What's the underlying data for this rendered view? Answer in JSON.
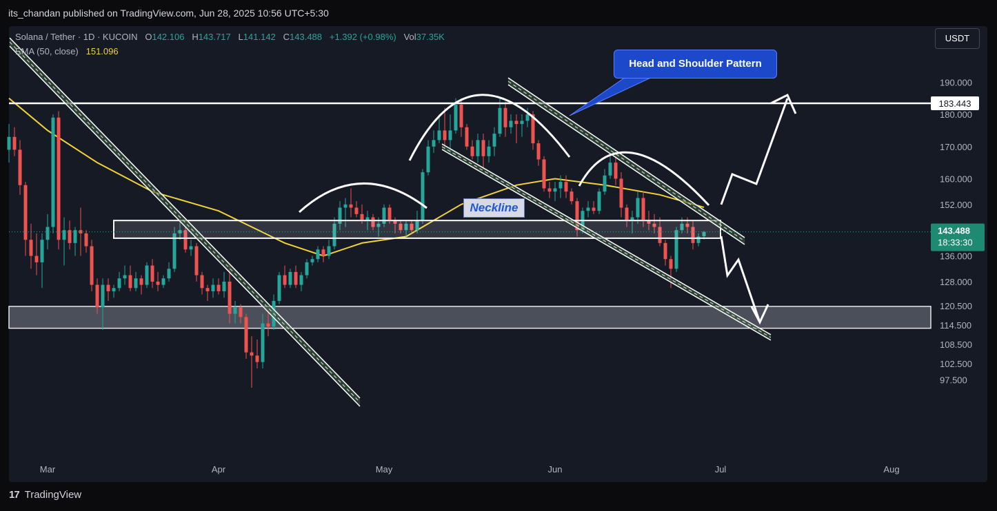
{
  "header": {
    "publisher": "its_chandan published on TradingView.com, Jun 28, 2025 10:56 UTC+5:30"
  },
  "legend": {
    "symbol": "Solana / Tether · 1D · KUCOIN",
    "open_label": "O",
    "open": "142.106",
    "high_label": "H",
    "high": "143.717",
    "low_label": "L",
    "low": "141.142",
    "close_label": "C",
    "close": "143.488",
    "change": "+1.392 (+0.98%)",
    "vol_label": "Vol",
    "vol": "37.35K",
    "ema_label": "EMA (50, close)",
    "ema_value": "151.096"
  },
  "currency_button": "USDT",
  "annotations": {
    "callout": "Head and Shoulder Pattern",
    "neckline": "Neckline"
  },
  "price_tags": {
    "level": "183.443",
    "current": "143.488",
    "countdown": "18:33:30"
  },
  "footer": {
    "brand": "TradingView"
  },
  "colors": {
    "up": "#26a69a",
    "down": "#ef5350",
    "ema": "#f2d234",
    "background": "#161a25",
    "callout": "#1c49c9",
    "current_tag": "#1e8a72"
  },
  "chart_data": {
    "type": "candlestick",
    "symbol": "Solana / Tether · 1D · KUCOIN",
    "x_ticks": [
      "Mar",
      "Apr",
      "May",
      "Jun",
      "Jul",
      "Aug"
    ],
    "x_tick_dates": [
      "2025-03-01",
      "2025-04-01",
      "2025-05-01",
      "2025-06-01",
      "2025-07-01",
      "2025-08-01"
    ],
    "y_ticks": [
      190.0,
      180.0,
      170.0,
      160.0,
      152.0,
      136.0,
      128.0,
      120.5,
      114.5,
      108.5,
      102.5,
      97.5
    ],
    "y_tick_labels": [
      "190.000",
      "180.000",
      "170.000",
      "160.000",
      "152.000",
      "136.000",
      "128.000",
      "120.500",
      "114.500",
      "108.500",
      "102.500",
      "97.500"
    ],
    "horizontal_level": 183.443,
    "neckline_zone": [
      141.5,
      147.0
    ],
    "support_zone": [
      113.5,
      120.3
    ],
    "candles": [
      {
        "d": "2025-02-22",
        "o": 169,
        "h": 177,
        "l": 165,
        "c": 173
      },
      {
        "d": "2025-02-23",
        "o": 173,
        "h": 176,
        "l": 167,
        "c": 169
      },
      {
        "d": "2025-02-24",
        "o": 169,
        "h": 172,
        "l": 155,
        "c": 158
      },
      {
        "d": "2025-02-25",
        "o": 158,
        "h": 159,
        "l": 136,
        "c": 141
      },
      {
        "d": "2025-02-26",
        "o": 141,
        "h": 146,
        "l": 132,
        "c": 136
      },
      {
        "d": "2025-02-27",
        "o": 136,
        "h": 143,
        "l": 130,
        "c": 134
      },
      {
        "d": "2025-02-28",
        "o": 134,
        "h": 143,
        "l": 126,
        "c": 141
      },
      {
        "d": "2025-03-01",
        "o": 141,
        "h": 149,
        "l": 138,
        "c": 145
      },
      {
        "d": "2025-03-02",
        "o": 145,
        "h": 180,
        "l": 143,
        "c": 179
      },
      {
        "d": "2025-03-03",
        "o": 179,
        "h": 181,
        "l": 138,
        "c": 141
      },
      {
        "d": "2025-03-04",
        "o": 141,
        "h": 148,
        "l": 133,
        "c": 144
      },
      {
        "d": "2025-03-05",
        "o": 144,
        "h": 147,
        "l": 138,
        "c": 140
      },
      {
        "d": "2025-03-06",
        "o": 140,
        "h": 145,
        "l": 136,
        "c": 144
      },
      {
        "d": "2025-03-07",
        "o": 144,
        "h": 151,
        "l": 136,
        "c": 143
      },
      {
        "d": "2025-03-08",
        "o": 143,
        "h": 144,
        "l": 137,
        "c": 139
      },
      {
        "d": "2025-03-09",
        "o": 139,
        "h": 141,
        "l": 125,
        "c": 127
      },
      {
        "d": "2025-03-10",
        "o": 127,
        "h": 129,
        "l": 118,
        "c": 120
      },
      {
        "d": "2025-03-11",
        "o": 120,
        "h": 129,
        "l": 113,
        "c": 127
      },
      {
        "d": "2025-03-12",
        "o": 127,
        "h": 129,
        "l": 122,
        "c": 125
      },
      {
        "d": "2025-03-13",
        "o": 125,
        "h": 127,
        "l": 123,
        "c": 126
      },
      {
        "d": "2025-03-14",
        "o": 126,
        "h": 131,
        "l": 125,
        "c": 129
      },
      {
        "d": "2025-03-15",
        "o": 129,
        "h": 133,
        "l": 127,
        "c": 130
      },
      {
        "d": "2025-03-16",
        "o": 130,
        "h": 133,
        "l": 125,
        "c": 126
      },
      {
        "d": "2025-03-17",
        "o": 126,
        "h": 131,
        "l": 125,
        "c": 129
      },
      {
        "d": "2025-03-18",
        "o": 129,
        "h": 130,
        "l": 124,
        "c": 127
      },
      {
        "d": "2025-03-19",
        "o": 127,
        "h": 134,
        "l": 126,
        "c": 133
      },
      {
        "d": "2025-03-20",
        "o": 133,
        "h": 135,
        "l": 126,
        "c": 128
      },
      {
        "d": "2025-03-21",
        "o": 128,
        "h": 131,
        "l": 125,
        "c": 127
      },
      {
        "d": "2025-03-22",
        "o": 127,
        "h": 130,
        "l": 126,
        "c": 129
      },
      {
        "d": "2025-03-23",
        "o": 129,
        "h": 134,
        "l": 128,
        "c": 132
      },
      {
        "d": "2025-03-24",
        "o": 132,
        "h": 145,
        "l": 131,
        "c": 143
      },
      {
        "d": "2025-03-25",
        "o": 143,
        "h": 147,
        "l": 141,
        "c": 144
      },
      {
        "d": "2025-03-26",
        "o": 144,
        "h": 145,
        "l": 137,
        "c": 138
      },
      {
        "d": "2025-03-27",
        "o": 138,
        "h": 141,
        "l": 136,
        "c": 139
      },
      {
        "d": "2025-03-28",
        "o": 139,
        "h": 140,
        "l": 128,
        "c": 130
      },
      {
        "d": "2025-03-29",
        "o": 130,
        "h": 131,
        "l": 124,
        "c": 126
      },
      {
        "d": "2025-03-30",
        "o": 126,
        "h": 127,
        "l": 122,
        "c": 125
      },
      {
        "d": "2025-03-31",
        "o": 125,
        "h": 129,
        "l": 123,
        "c": 127
      },
      {
        "d": "2025-04-01",
        "o": 127,
        "h": 129,
        "l": 124,
        "c": 125
      },
      {
        "d": "2025-04-02",
        "o": 125,
        "h": 131,
        "l": 123,
        "c": 128
      },
      {
        "d": "2025-04-03",
        "o": 128,
        "h": 133,
        "l": 115,
        "c": 118
      },
      {
        "d": "2025-04-04",
        "o": 118,
        "h": 122,
        "l": 115,
        "c": 120
      },
      {
        "d": "2025-04-05",
        "o": 120,
        "h": 121,
        "l": 115,
        "c": 117
      },
      {
        "d": "2025-04-06",
        "o": 117,
        "h": 118,
        "l": 104,
        "c": 106
      },
      {
        "d": "2025-04-07",
        "o": 106,
        "h": 111,
        "l": 95,
        "c": 105
      },
      {
        "d": "2025-04-08",
        "o": 105,
        "h": 110,
        "l": 101,
        "c": 103
      },
      {
        "d": "2025-04-09",
        "o": 103,
        "h": 118,
        "l": 101,
        "c": 115
      },
      {
        "d": "2025-04-10",
        "o": 115,
        "h": 119,
        "l": 111,
        "c": 114
      },
      {
        "d": "2025-04-11",
        "o": 114,
        "h": 124,
        "l": 113,
        "c": 122
      },
      {
        "d": "2025-04-12",
        "o": 122,
        "h": 131,
        "l": 121,
        "c": 130
      },
      {
        "d": "2025-04-13",
        "o": 130,
        "h": 133,
        "l": 126,
        "c": 127
      },
      {
        "d": "2025-04-14",
        "o": 127,
        "h": 132,
        "l": 126,
        "c": 131
      },
      {
        "d": "2025-04-15",
        "o": 131,
        "h": 133,
        "l": 126,
        "c": 127
      },
      {
        "d": "2025-04-16",
        "o": 127,
        "h": 131,
        "l": 125,
        "c": 130
      },
      {
        "d": "2025-04-17",
        "o": 130,
        "h": 135,
        "l": 129,
        "c": 134
      },
      {
        "d": "2025-04-18",
        "o": 134,
        "h": 136,
        "l": 133,
        "c": 135
      },
      {
        "d": "2025-04-19",
        "o": 135,
        "h": 139,
        "l": 134,
        "c": 138
      },
      {
        "d": "2025-04-20",
        "o": 138,
        "h": 139,
        "l": 134,
        "c": 136
      },
      {
        "d": "2025-04-21",
        "o": 136,
        "h": 141,
        "l": 135,
        "c": 139
      },
      {
        "d": "2025-04-22",
        "o": 139,
        "h": 148,
        "l": 138,
        "c": 146
      },
      {
        "d": "2025-04-23",
        "o": 146,
        "h": 153,
        "l": 144,
        "c": 151
      },
      {
        "d": "2025-04-24",
        "o": 151,
        "h": 154,
        "l": 145,
        "c": 152
      },
      {
        "d": "2025-04-25",
        "o": 152,
        "h": 157,
        "l": 148,
        "c": 151
      },
      {
        "d": "2025-04-26",
        "o": 151,
        "h": 153,
        "l": 148,
        "c": 149
      },
      {
        "d": "2025-04-27",
        "o": 149,
        "h": 152,
        "l": 146,
        "c": 147
      },
      {
        "d": "2025-04-28",
        "o": 147,
        "h": 150,
        "l": 144,
        "c": 148
      },
      {
        "d": "2025-04-29",
        "o": 148,
        "h": 149,
        "l": 144,
        "c": 145
      },
      {
        "d": "2025-04-30",
        "o": 145,
        "h": 148,
        "l": 142,
        "c": 146
      },
      {
        "d": "2025-05-01",
        "o": 146,
        "h": 152,
        "l": 145,
        "c": 151
      },
      {
        "d": "2025-05-02",
        "o": 151,
        "h": 152,
        "l": 146,
        "c": 147
      },
      {
        "d": "2025-05-03",
        "o": 147,
        "h": 148,
        "l": 143,
        "c": 146
      },
      {
        "d": "2025-05-04",
        "o": 146,
        "h": 147,
        "l": 143,
        "c": 144
      },
      {
        "d": "2025-05-05",
        "o": 144,
        "h": 147,
        "l": 142,
        "c": 146
      },
      {
        "d": "2025-05-06",
        "o": 146,
        "h": 147,
        "l": 143,
        "c": 144
      },
      {
        "d": "2025-05-07",
        "o": 144,
        "h": 150,
        "l": 143,
        "c": 147
      },
      {
        "d": "2025-05-08",
        "o": 147,
        "h": 163,
        "l": 146,
        "c": 162
      },
      {
        "d": "2025-05-09",
        "o": 162,
        "h": 172,
        "l": 161,
        "c": 170
      },
      {
        "d": "2025-05-10",
        "o": 170,
        "h": 175,
        "l": 168,
        "c": 172
      },
      {
        "d": "2025-05-11",
        "o": 172,
        "h": 180,
        "l": 171,
        "c": 175
      },
      {
        "d": "2025-05-12",
        "o": 175,
        "h": 182,
        "l": 169,
        "c": 172
      },
      {
        "d": "2025-05-13",
        "o": 172,
        "h": 180,
        "l": 168,
        "c": 175
      },
      {
        "d": "2025-05-14",
        "o": 175,
        "h": 185,
        "l": 174,
        "c": 183
      },
      {
        "d": "2025-05-15",
        "o": 183,
        "h": 185,
        "l": 173,
        "c": 176
      },
      {
        "d": "2025-05-16",
        "o": 176,
        "h": 177,
        "l": 169,
        "c": 170
      },
      {
        "d": "2025-05-17",
        "o": 170,
        "h": 172,
        "l": 166,
        "c": 167
      },
      {
        "d": "2025-05-18",
        "o": 167,
        "h": 174,
        "l": 165,
        "c": 172
      },
      {
        "d": "2025-05-19",
        "o": 172,
        "h": 174,
        "l": 163,
        "c": 167
      },
      {
        "d": "2025-05-20",
        "o": 167,
        "h": 172,
        "l": 165,
        "c": 170
      },
      {
        "d": "2025-05-21",
        "o": 170,
        "h": 176,
        "l": 167,
        "c": 174
      },
      {
        "d": "2025-05-22",
        "o": 174,
        "h": 185,
        "l": 173,
        "c": 182
      },
      {
        "d": "2025-05-23",
        "o": 182,
        "h": 184,
        "l": 173,
        "c": 176
      },
      {
        "d": "2025-05-24",
        "o": 176,
        "h": 180,
        "l": 174,
        "c": 178
      },
      {
        "d": "2025-05-25",
        "o": 178,
        "h": 180,
        "l": 171,
        "c": 177
      },
      {
        "d": "2025-05-26",
        "o": 177,
        "h": 180,
        "l": 173,
        "c": 178
      },
      {
        "d": "2025-05-27",
        "o": 178,
        "h": 182,
        "l": 176,
        "c": 180
      },
      {
        "d": "2025-05-28",
        "o": 180,
        "h": 181,
        "l": 169,
        "c": 171
      },
      {
        "d": "2025-05-29",
        "o": 171,
        "h": 172,
        "l": 164,
        "c": 166
      },
      {
        "d": "2025-05-30",
        "o": 166,
        "h": 167,
        "l": 156,
        "c": 157
      },
      {
        "d": "2025-05-31",
        "o": 157,
        "h": 159,
        "l": 154,
        "c": 156
      },
      {
        "d": "2025-06-01",
        "o": 156,
        "h": 159,
        "l": 153,
        "c": 157
      },
      {
        "d": "2025-06-02",
        "o": 157,
        "h": 161,
        "l": 154,
        "c": 159
      },
      {
        "d": "2025-06-03",
        "o": 159,
        "h": 161,
        "l": 154,
        "c": 156
      },
      {
        "d": "2025-06-04",
        "o": 156,
        "h": 157,
        "l": 152,
        "c": 153
      },
      {
        "d": "2025-06-05",
        "o": 153,
        "h": 154,
        "l": 142,
        "c": 144
      },
      {
        "d": "2025-06-06",
        "o": 144,
        "h": 151,
        "l": 143,
        "c": 150
      },
      {
        "d": "2025-06-07",
        "o": 150,
        "h": 153,
        "l": 148,
        "c": 151
      },
      {
        "d": "2025-06-08",
        "o": 151,
        "h": 153,
        "l": 149,
        "c": 150
      },
      {
        "d": "2025-06-09",
        "o": 150,
        "h": 157,
        "l": 149,
        "c": 156
      },
      {
        "d": "2025-06-10",
        "o": 156,
        "h": 163,
        "l": 155,
        "c": 161
      },
      {
        "d": "2025-06-11",
        "o": 161,
        "h": 167,
        "l": 160,
        "c": 165
      },
      {
        "d": "2025-06-12",
        "o": 165,
        "h": 167,
        "l": 158,
        "c": 160
      },
      {
        "d": "2025-06-13",
        "o": 160,
        "h": 162,
        "l": 148,
        "c": 151
      },
      {
        "d": "2025-06-14",
        "o": 151,
        "h": 152,
        "l": 145,
        "c": 147
      },
      {
        "d": "2025-06-15",
        "o": 147,
        "h": 150,
        "l": 143,
        "c": 148
      },
      {
        "d": "2025-06-16",
        "o": 148,
        "h": 156,
        "l": 146,
        "c": 154
      },
      {
        "d": "2025-06-17",
        "o": 154,
        "h": 156,
        "l": 145,
        "c": 147
      },
      {
        "d": "2025-06-18",
        "o": 147,
        "h": 150,
        "l": 144,
        "c": 146
      },
      {
        "d": "2025-06-19",
        "o": 146,
        "h": 149,
        "l": 143,
        "c": 145
      },
      {
        "d": "2025-06-20",
        "o": 145,
        "h": 148,
        "l": 139,
        "c": 140
      },
      {
        "d": "2025-06-21",
        "o": 140,
        "h": 141,
        "l": 133,
        "c": 135
      },
      {
        "d": "2025-06-22",
        "o": 135,
        "h": 136,
        "l": 126,
        "c": 132
      },
      {
        "d": "2025-06-23",
        "o": 132,
        "h": 145,
        "l": 131,
        "c": 144
      },
      {
        "d": "2025-06-24",
        "o": 144,
        "h": 148,
        "l": 143,
        "c": 146
      },
      {
        "d": "2025-06-25",
        "o": 146,
        "h": 148,
        "l": 143,
        "c": 145
      },
      {
        "d": "2025-06-26",
        "o": 145,
        "h": 147,
        "l": 138,
        "c": 140
      },
      {
        "d": "2025-06-27",
        "o": 140,
        "h": 143,
        "l": 139,
        "c": 142
      },
      {
        "d": "2025-06-28",
        "o": 142.106,
        "h": 143.717,
        "l": 141.142,
        "c": 143.488
      }
    ],
    "ema50": [
      {
        "d": "2025-02-22",
        "v": 185
      },
      {
        "d": "2025-03-01",
        "v": 175
      },
      {
        "d": "2025-03-10",
        "v": 165
      },
      {
        "d": "2025-03-20",
        "v": 156
      },
      {
        "d": "2025-04-01",
        "v": 150
      },
      {
        "d": "2025-04-07",
        "v": 145
      },
      {
        "d": "2025-04-13",
        "v": 140
      },
      {
        "d": "2025-04-20",
        "v": 136
      },
      {
        "d": "2025-04-27",
        "v": 140
      },
      {
        "d": "2025-05-05",
        "v": 142
      },
      {
        "d": "2025-05-15",
        "v": 152
      },
      {
        "d": "2025-05-25",
        "v": 158
      },
      {
        "d": "2025-06-01",
        "v": 160
      },
      {
        "d": "2025-06-10",
        "v": 158
      },
      {
        "d": "2025-06-20",
        "v": 155
      },
      {
        "d": "2025-06-28",
        "v": 151.096
      }
    ]
  }
}
